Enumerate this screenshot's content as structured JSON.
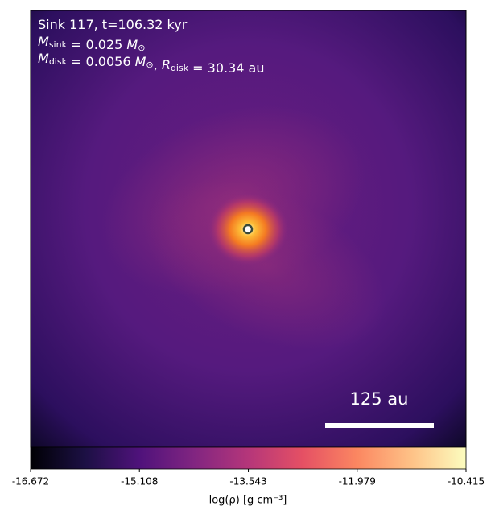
{
  "chart_data": {
    "type": "image",
    "annotations": [
      [
        {
          "t": "Sink 117, t=106.32 kyr"
        }
      ],
      [
        {
          "t": "M",
          "i": true
        },
        {
          "sub": "sink"
        },
        {
          "t": " = 0.025 "
        },
        {
          "t": "M",
          "i": true
        },
        {
          "sub": "⊙"
        }
      ],
      [
        {
          "t": "M",
          "i": true
        },
        {
          "sub": "disk"
        },
        {
          "t": " = 0.0056 "
        },
        {
          "t": "M",
          "i": true
        },
        {
          "sub": "⊙"
        },
        {
          "t": ", "
        },
        {
          "t": "R",
          "i": true
        },
        {
          "sub": "disk"
        },
        {
          "t": " = 30.34 au"
        }
      ]
    ],
    "scale_bar_label": "125 au",
    "colorbar_label": "log(ρ) [g cm⁻³]",
    "clim": [
      -16.672,
      -10.415
    ],
    "cticks": [
      -16.672,
      -15.108,
      -13.543,
      -11.979,
      -10.415
    ],
    "colormap_colors": [
      "#000004",
      "#1c1044",
      "#4f127b",
      "#812581",
      "#b5367a",
      "#e55064",
      "#fb8761",
      "#fec287",
      "#fcfdbf"
    ]
  }
}
